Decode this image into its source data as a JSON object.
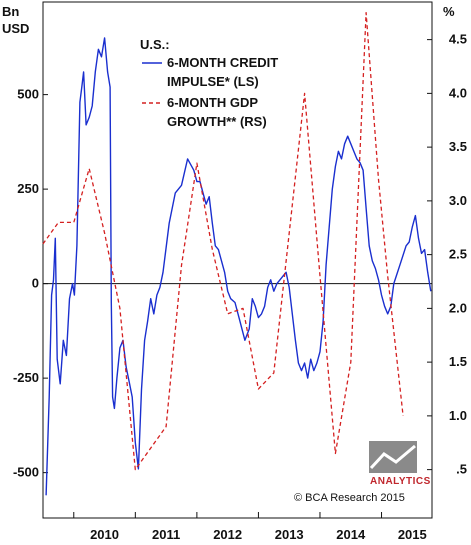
{
  "chart_data": {
    "type": "line",
    "title": "U.S.:",
    "left_axis": {
      "unit_lines": [
        "Bn",
        "USD"
      ],
      "ylim": [
        -620,
        745
      ],
      "ticks": [
        -500,
        -250,
        0,
        250,
        500
      ],
      "tick_labels": [
        "-500",
        "-250",
        "0",
        "250",
        "500"
      ]
    },
    "right_axis": {
      "unit_label": "%",
      "ylim": [
        0.05,
        4.85
      ],
      "ticks": [
        0.5,
        1.0,
        1.5,
        2.0,
        2.5,
        3.0,
        3.5,
        4.0,
        4.5
      ],
      "tick_labels": [
        ".5",
        "1.0",
        "1.5",
        "2.0",
        "2.5",
        "3.0",
        "3.5",
        "4.0",
        "4.5"
      ]
    },
    "x_axis": {
      "xlim": [
        2009.5,
        2015.82
      ],
      "labels": [
        "2010",
        "2011",
        "2012",
        "2013",
        "2014",
        "2015"
      ],
      "label_positions": [
        2010.5,
        2011.5,
        2012.5,
        2013.5,
        2014.5,
        2015.5
      ],
      "year_ticks": [
        2010,
        2011,
        2012,
        2013,
        2014,
        2015
      ]
    },
    "grid": false,
    "zero_line": 0,
    "legend_position": "top-center",
    "series": [
      {
        "name": "6-MONTH CREDIT IMPULSE* (LS)",
        "legend_lines": [
          "6-MONTH CREDIT",
          "IMPULSE* (LS)"
        ],
        "axis": "left",
        "color": "#1a2fcf",
        "style": "solid",
        "points": [
          [
            2009.55,
            -560
          ],
          [
            2009.6,
            -300
          ],
          [
            2009.64,
            -30
          ],
          [
            2009.67,
            10
          ],
          [
            2009.7,
            120
          ],
          [
            2009.73,
            -200
          ],
          [
            2009.78,
            -265
          ],
          [
            2009.83,
            -150
          ],
          [
            2009.88,
            -190
          ],
          [
            2009.93,
            -40
          ],
          [
            2009.98,
            0
          ],
          [
            2010.01,
            -30
          ],
          [
            2010.05,
            100
          ],
          [
            2010.1,
            480
          ],
          [
            2010.13,
            520
          ],
          [
            2010.16,
            560
          ],
          [
            2010.2,
            420
          ],
          [
            2010.25,
            440
          ],
          [
            2010.3,
            470
          ],
          [
            2010.35,
            560
          ],
          [
            2010.4,
            620
          ],
          [
            2010.45,
            600
          ],
          [
            2010.5,
            650
          ],
          [
            2010.55,
            560
          ],
          [
            2010.59,
            520
          ],
          [
            2010.61,
            -50
          ],
          [
            2010.63,
            -300
          ],
          [
            2010.66,
            -330
          ],
          [
            2010.7,
            -250
          ],
          [
            2010.75,
            -170
          ],
          [
            2010.8,
            -150
          ],
          [
            2010.85,
            -220
          ],
          [
            2010.9,
            -260
          ],
          [
            2010.95,
            -300
          ],
          [
            2011.0,
            -420
          ],
          [
            2011.05,
            -490
          ],
          [
            2011.1,
            -280
          ],
          [
            2011.15,
            -150
          ],
          [
            2011.2,
            -100
          ],
          [
            2011.25,
            -40
          ],
          [
            2011.3,
            -80
          ],
          [
            2011.35,
            -30
          ],
          [
            2011.4,
            -10
          ],
          [
            2011.45,
            30
          ],
          [
            2011.55,
            160
          ],
          [
            2011.65,
            240
          ],
          [
            2011.75,
            260
          ],
          [
            2011.85,
            330
          ],
          [
            2011.95,
            300
          ],
          [
            2012.0,
            270
          ],
          [
            2012.05,
            270
          ],
          [
            2012.1,
            240
          ],
          [
            2012.15,
            210
          ],
          [
            2012.2,
            230
          ],
          [
            2012.25,
            160
          ],
          [
            2012.3,
            100
          ],
          [
            2012.35,
            90
          ],
          [
            2012.4,
            60
          ],
          [
            2012.45,
            30
          ],
          [
            2012.5,
            -20
          ],
          [
            2012.55,
            -40
          ],
          [
            2012.62,
            -50
          ],
          [
            2012.7,
            -100
          ],
          [
            2012.78,
            -150
          ],
          [
            2012.85,
            -120
          ],
          [
            2012.9,
            -40
          ],
          [
            2012.95,
            -60
          ],
          [
            2013.0,
            -90
          ],
          [
            2013.05,
            -80
          ],
          [
            2013.1,
            -60
          ],
          [
            2013.15,
            -10
          ],
          [
            2013.2,
            10
          ],
          [
            2013.25,
            -20
          ],
          [
            2013.3,
            0
          ],
          [
            2013.35,
            10
          ],
          [
            2013.4,
            20
          ],
          [
            2013.45,
            30
          ],
          [
            2013.5,
            -10
          ],
          [
            2013.55,
            -80
          ],
          [
            2013.6,
            -150
          ],
          [
            2013.65,
            -210
          ],
          [
            2013.7,
            -230
          ],
          [
            2013.75,
            -210
          ],
          [
            2013.8,
            -250
          ],
          [
            2013.85,
            -200
          ],
          [
            2013.9,
            -230
          ],
          [
            2013.95,
            -210
          ],
          [
            2014.0,
            -180
          ],
          [
            2014.05,
            -100
          ],
          [
            2014.1,
            50
          ],
          [
            2014.15,
            150
          ],
          [
            2014.2,
            250
          ],
          [
            2014.25,
            310
          ],
          [
            2014.3,
            350
          ],
          [
            2014.35,
            330
          ],
          [
            2014.4,
            370
          ],
          [
            2014.45,
            390
          ],
          [
            2014.5,
            370
          ],
          [
            2014.55,
            350
          ],
          [
            2014.6,
            330
          ],
          [
            2014.65,
            320
          ],
          [
            2014.7,
            300
          ],
          [
            2014.75,
            200
          ],
          [
            2014.8,
            100
          ],
          [
            2014.85,
            60
          ],
          [
            2014.9,
            40
          ],
          [
            2014.95,
            10
          ],
          [
            2015.0,
            -30
          ],
          [
            2015.05,
            -60
          ],
          [
            2015.1,
            -80
          ],
          [
            2015.15,
            -60
          ],
          [
            2015.2,
            0
          ],
          [
            2015.3,
            50
          ],
          [
            2015.4,
            100
          ],
          [
            2015.45,
            110
          ],
          [
            2015.5,
            150
          ],
          [
            2015.55,
            180
          ],
          [
            2015.6,
            120
          ],
          [
            2015.65,
            80
          ],
          [
            2015.7,
            90
          ],
          [
            2015.75,
            30
          ],
          [
            2015.8,
            -20
          ]
        ]
      },
      {
        "name": "6-MONTH GDP GROWTH** (RS)",
        "legend_lines": [
          "6-MONTH GDP",
          "GROWTH** (RS)"
        ],
        "axis": "right",
        "color": "#d42020",
        "style": "dashed",
        "points": [
          [
            2009.5,
            2.6
          ],
          [
            2009.75,
            2.8
          ],
          [
            2010.0,
            2.8
          ],
          [
            2010.25,
            3.3
          ],
          [
            2010.5,
            2.7
          ],
          [
            2010.75,
            2.0
          ],
          [
            2011.0,
            0.5
          ],
          [
            2011.25,
            0.7
          ],
          [
            2011.5,
            0.9
          ],
          [
            2011.75,
            2.4
          ],
          [
            2012.0,
            3.35
          ],
          [
            2012.25,
            2.55
          ],
          [
            2012.5,
            1.95
          ],
          [
            2012.75,
            2.0
          ],
          [
            2013.0,
            1.25
          ],
          [
            2013.25,
            1.4
          ],
          [
            2013.5,
            2.7
          ],
          [
            2013.75,
            4.0
          ],
          [
            2014.0,
            2.3
          ],
          [
            2014.25,
            0.65
          ],
          [
            2014.5,
            1.5
          ],
          [
            2014.75,
            4.75
          ],
          [
            2014.95,
            3.2
          ],
          [
            2015.1,
            2.3
          ],
          [
            2015.35,
            1.0
          ]
        ]
      }
    ]
  },
  "branding": {
    "logo_text": "ANALYTICS",
    "copyright": "© BCA Research 2015"
  }
}
